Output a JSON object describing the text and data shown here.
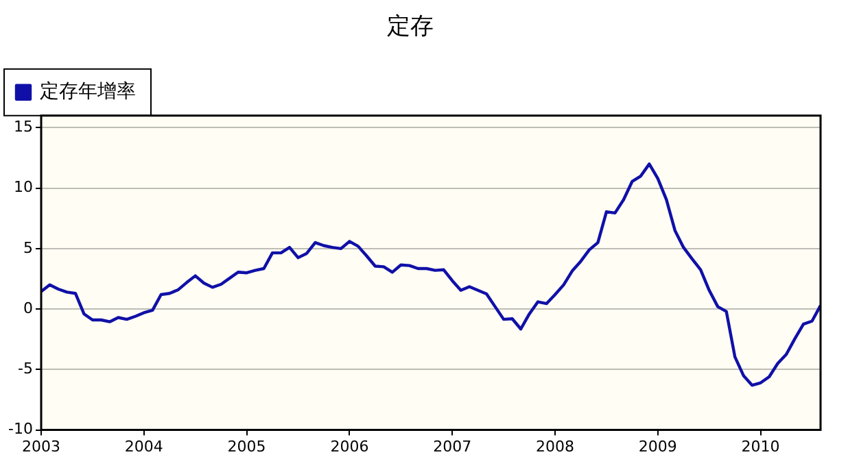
{
  "chart_data": {
    "type": "line",
    "title": "定存",
    "legend": "top left",
    "grid": "y",
    "marker": "none",
    "line_style": "solid",
    "x": [
      "2003-01",
      "2003-02",
      "2003-03",
      "2003-04",
      "2003-05",
      "2003-06",
      "2003-07",
      "2003-08",
      "2003-09",
      "2003-10",
      "2003-11",
      "2003-12",
      "2004-01",
      "2004-02",
      "2004-03",
      "2004-04",
      "2004-05",
      "2004-06",
      "2004-07",
      "2004-08",
      "2004-09",
      "2004-10",
      "2004-11",
      "2004-12",
      "2005-01",
      "2005-02",
      "2005-03",
      "2005-04",
      "2005-05",
      "2005-06",
      "2005-07",
      "2005-08",
      "2005-09",
      "2005-10",
      "2005-11",
      "2005-12",
      "2006-01",
      "2006-02",
      "2006-03",
      "2006-04",
      "2006-05",
      "2006-06",
      "2006-07",
      "2006-08",
      "2006-09",
      "2006-10",
      "2006-11",
      "2006-12",
      "2007-01",
      "2007-02",
      "2007-03",
      "2007-04",
      "2007-05",
      "2007-06",
      "2007-07",
      "2007-08",
      "2007-09",
      "2007-10",
      "2007-11",
      "2007-12",
      "2008-01",
      "2008-02",
      "2008-03",
      "2008-04",
      "2008-05",
      "2008-06",
      "2008-07",
      "2008-08",
      "2008-09",
      "2008-10",
      "2008-11",
      "2008-12",
      "2009-01",
      "2009-02",
      "2009-03",
      "2009-04",
      "2009-05",
      "2009-06",
      "2009-07",
      "2009-08",
      "2009-09",
      "2009-10",
      "2009-11",
      "2009-12",
      "2010-01",
      "2010-02",
      "2010-03",
      "2010-04",
      "2010-05",
      "2010-06",
      "2010-07",
      "2010-08"
    ],
    "series": [
      {
        "name": "定存年增率",
        "color": "#1010a8",
        "values": [
          1.45,
          2.0,
          1.65,
          1.4,
          1.3,
          -0.4,
          -0.9,
          -0.9,
          -1.05,
          -0.7,
          -0.85,
          -0.6,
          -0.3,
          -0.1,
          1.2,
          1.3,
          1.6,
          2.2,
          2.75,
          2.15,
          1.8,
          2.05,
          2.55,
          3.05,
          3.0,
          3.2,
          3.35,
          4.65,
          4.65,
          5.1,
          4.25,
          4.6,
          5.5,
          5.25,
          5.1,
          5.0,
          5.6,
          5.2,
          4.4,
          3.55,
          3.5,
          3.05,
          3.65,
          3.6,
          3.35,
          3.35,
          3.2,
          3.25,
          2.35,
          1.55,
          1.85,
          1.55,
          1.25,
          0.2,
          -0.85,
          -0.8,
          -1.65,
          -0.4,
          0.6,
          0.45,
          1.2,
          2.0,
          3.15,
          3.95,
          4.9,
          5.5,
          8.05,
          7.95,
          9.05,
          10.55,
          11.0,
          12.0,
          10.8,
          9.05,
          6.5,
          5.1,
          4.15,
          3.25,
          1.55,
          0.2,
          -0.2,
          -3.95,
          -5.5,
          -6.3,
          -6.1,
          -5.6,
          -4.5,
          -3.75,
          -2.45,
          -1.25,
          -1.0,
          0.3
        ]
      }
    ],
    "xlim": [
      "2003-01",
      "2010-08"
    ],
    "xticks": [
      "2003",
      "2004",
      "2005",
      "2006",
      "2007",
      "2008",
      "2009",
      "2010"
    ],
    "ylim": [
      -10,
      16
    ],
    "yticks": [
      -10,
      -5,
      0,
      5,
      10,
      15
    ]
  }
}
